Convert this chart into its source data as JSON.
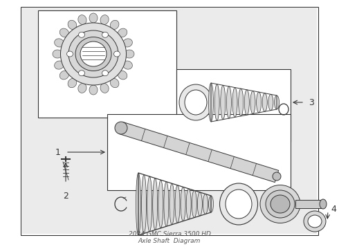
{
  "bg_outer": "#ffffff",
  "bg_inner": "#e8e8e8",
  "lc": "#333333",
  "lw": 0.7,
  "title": "2024 GMC Sierra 3500 HD\nAxle Shaft  Diagram"
}
